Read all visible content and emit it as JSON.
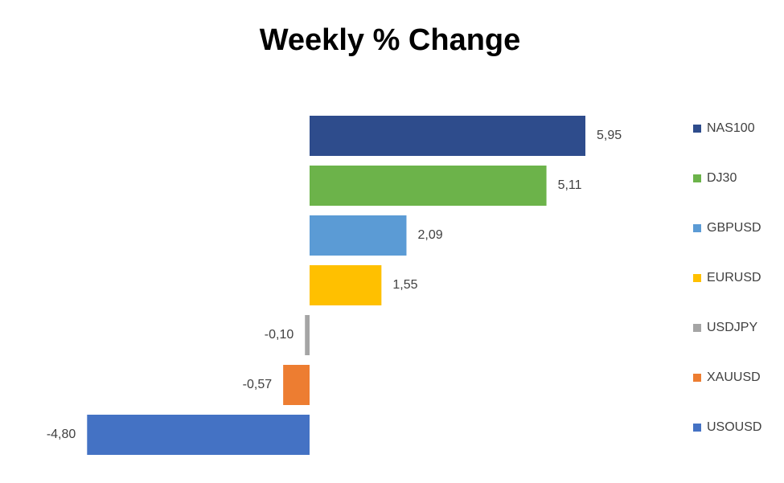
{
  "chart_data": {
    "type": "hbar",
    "title": "Weekly % Change",
    "series": [
      {
        "name": "NAS100",
        "color": "#2e4c8c",
        "values": [
          5.95
        ],
        "value_labels": [
          "5,95"
        ]
      },
      {
        "name": "DJ30",
        "color": "#6cb34a",
        "values": [
          5.11
        ],
        "value_labels": [
          "5,11"
        ]
      },
      {
        "name": "GBPUSD",
        "color": "#5b9bd5",
        "values": [
          2.09
        ],
        "value_labels": [
          "2,09"
        ]
      },
      {
        "name": "EURUSD",
        "color": "#ffc000",
        "values": [
          1.55
        ],
        "value_labels": [
          "1,55"
        ]
      },
      {
        "name": "USDJPY",
        "color": "#a5a5a5",
        "values": [
          -0.1
        ],
        "value_labels": [
          "-0,10"
        ]
      },
      {
        "name": "XAUUSD",
        "color": "#ed7d31",
        "values": [
          -0.57
        ],
        "value_labels": [
          "-0,57"
        ]
      },
      {
        "name": "USOUSD",
        "color": "#4472c4",
        "values": [
          -4.8
        ],
        "value_labels": [
          "-4,80"
        ]
      }
    ],
    "legend": "right"
  }
}
